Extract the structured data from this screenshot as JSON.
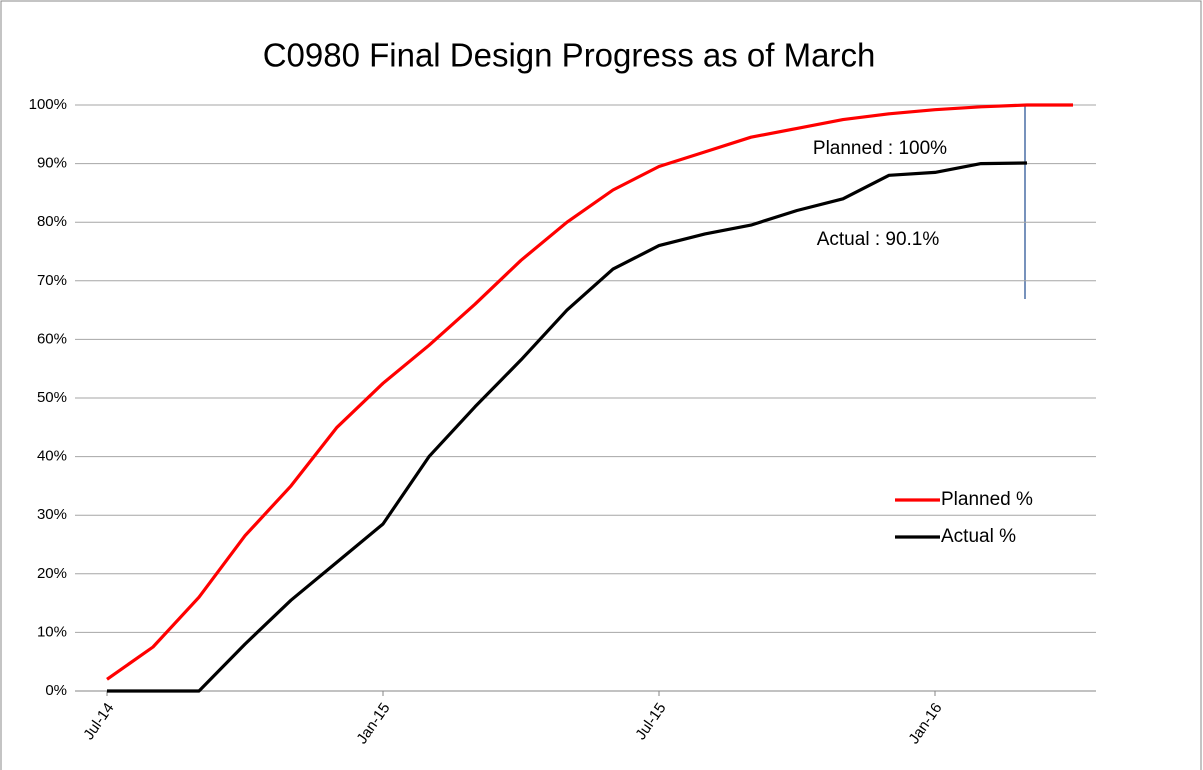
{
  "chart_data": {
    "type": "line",
    "title": "C0980 Final Design Progress as of March",
    "categories": [
      "Jul-14",
      null,
      null,
      null,
      null,
      null,
      "Jan-15",
      null,
      null,
      null,
      null,
      null,
      "Jul-15",
      null,
      null,
      null,
      null,
      null,
      "Jan-16",
      null,
      null,
      null
    ],
    "series": [
      {
        "name": "Planned %",
        "color": "#ff0000",
        "values": [
          2,
          7.5,
          16,
          26.5,
          35,
          45,
          52.5,
          59,
          66,
          73.5,
          80,
          85.5,
          89.5,
          92,
          94.5,
          96,
          97.5,
          98.5,
          99.2,
          99.7,
          100,
          100
        ]
      },
      {
        "name": "Actual %",
        "color": "#000000",
        "values": [
          0,
          0,
          0,
          8,
          15.5,
          22,
          28.5,
          40,
          48.5,
          56.5,
          65,
          72,
          76,
          78,
          79.5,
          82,
          84,
          88,
          88.5,
          90,
          90.1,
          null
        ]
      }
    ],
    "ylim": [
      0,
      100
    ],
    "yticks": [
      {
        "value": 0,
        "label": "0%"
      },
      {
        "value": 10,
        "label": "10%"
      },
      {
        "value": 20,
        "label": "20%"
      },
      {
        "value": 30,
        "label": "30%"
      },
      {
        "value": 40,
        "label": "40%"
      },
      {
        "value": 50,
        "label": "50%"
      },
      {
        "value": 60,
        "label": "60%"
      },
      {
        "value": 70,
        "label": "70%"
      },
      {
        "value": 80,
        "label": "80%"
      },
      {
        "value": 90,
        "label": "90%"
      },
      {
        "value": 100,
        "label": "100%"
      }
    ],
    "grid": true,
    "legend": "right",
    "annotations": [
      "Planned : 100%",
      "Actual : 90.1%"
    ]
  }
}
